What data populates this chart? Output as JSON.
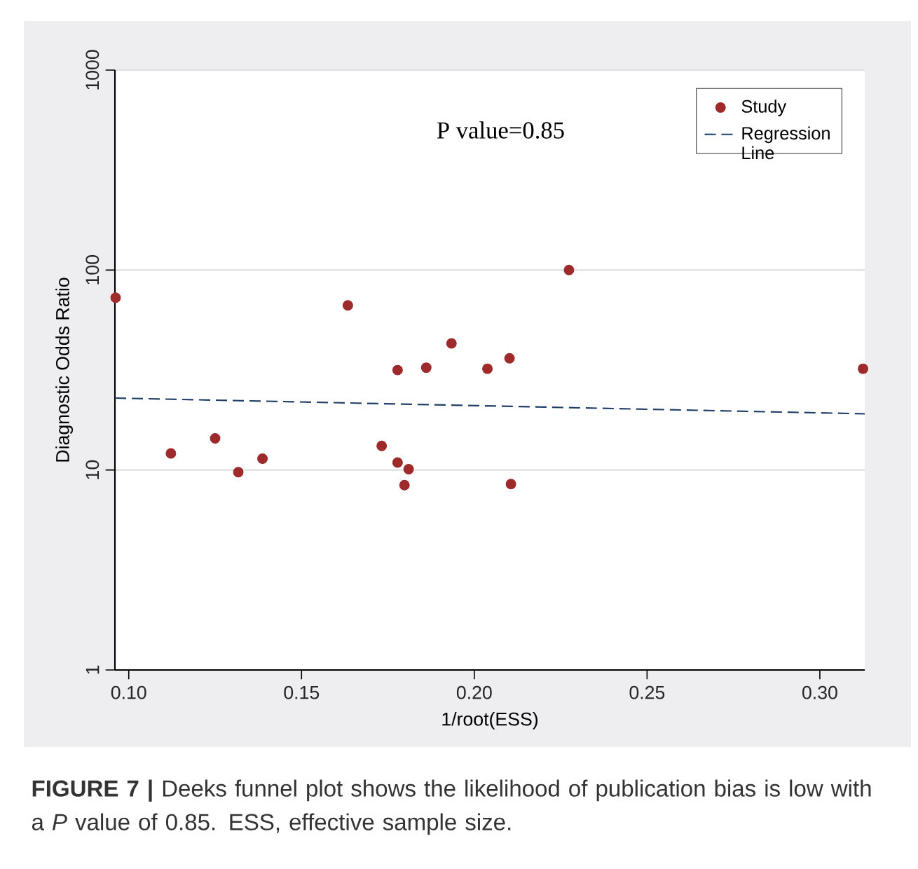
{
  "chart_data": {
    "type": "scatter",
    "xlabel": "1/root(ESS)",
    "ylabel": "Diagnostic Odds Ratio",
    "annotations": [
      "P value=0.85",
      "**FIGURE 7 |** Deeks funnel plot shows the likelihood of publication bias is low with a *P* value of 0.85. ESS, effective sample size."
    ],
    "xlim": [
      0.096,
      0.313
    ],
    "ylim": [
      1,
      1000
    ],
    "xticks": [
      {
        "value": 0.1,
        "label": "0.10"
      },
      {
        "value": 0.15,
        "label": "0.15"
      },
      {
        "value": 0.2,
        "label": "0.20"
      },
      {
        "value": 0.25,
        "label": "0.25"
      },
      {
        "value": 0.3,
        "label": "0.30"
      }
    ],
    "yticks": [
      1,
      10,
      100,
      1000
    ],
    "log": "y",
    "grid": "y",
    "legend": "top right",
    "series": [
      {
        "name": "Study",
        "marker": "circle",
        "color": "#9e2a2b",
        "x": [
          0.0962,
          0.1122,
          0.125,
          0.1317,
          0.1387,
          0.1634,
          0.1732,
          0.1778,
          0.1778,
          0.181,
          0.1798,
          0.1861,
          0.1934,
          0.2038,
          0.2102,
          0.2106,
          0.2274,
          0.3125
        ],
        "values": [
          72.8,
          12.1,
          14.4,
          9.75,
          11.4,
          66.6,
          13.2,
          31.6,
          10.9,
          10.1,
          8.4,
          32.5,
          43.0,
          32.1,
          36.2,
          8.5,
          100,
          32.1
        ]
      },
      {
        "name": "Regression Line",
        "type": "line",
        "marker": "none",
        "line_style": "dashed",
        "color": "#1f3f66",
        "x": [
          0.096,
          0.313
        ],
        "values": [
          22.9,
          19.1
        ]
      }
    ]
  }
}
